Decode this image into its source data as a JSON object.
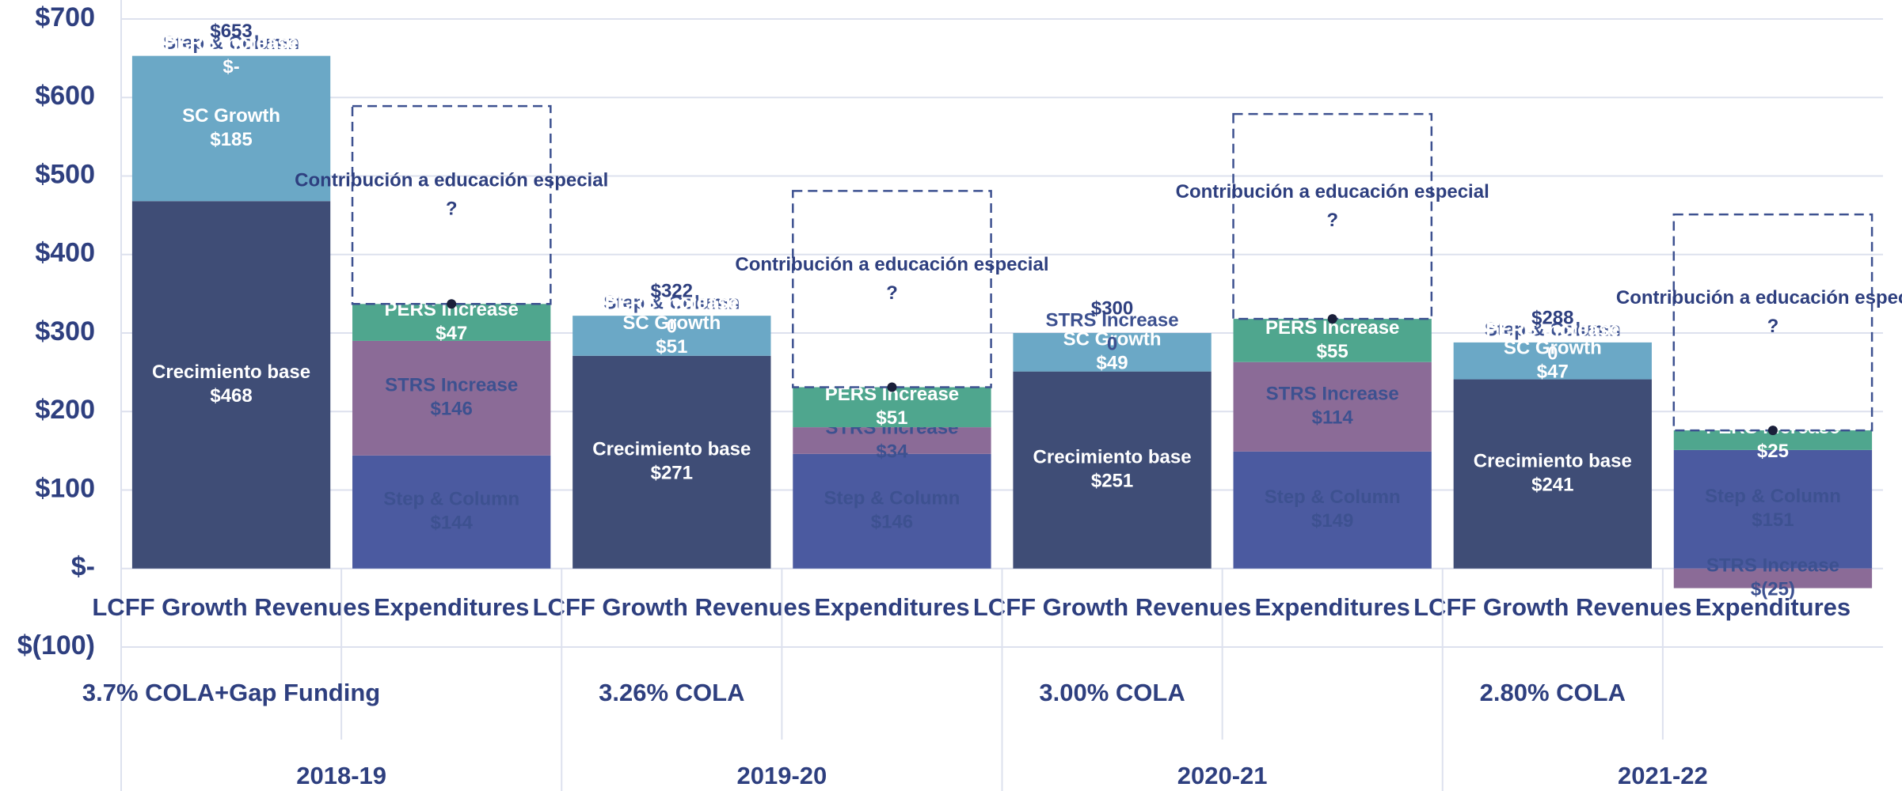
{
  "chart_data": {
    "type": "bar",
    "categories": [
      "LCFF Growth Revenues",
      "Expenditures",
      "LCFF Growth Revenues",
      "Expenditures",
      "LCFF Growth Revenues",
      "Expenditures",
      "LCFF Growth Revenues",
      "Expenditures"
    ],
    "groups": [
      "2018-19",
      "2019-20",
      "2020-21",
      "2021-22"
    ],
    "group_notes": [
      "3.7% COLA+Gap Funding",
      "3.26% COLA",
      "3.00% COLA",
      "2.80% COLA"
    ],
    "series": [
      {
        "name": "Crecimiento base",
        "color": "#3f4d76",
        "text_color": "#ffffff",
        "values": [
          468,
          0,
          271,
          0,
          251,
          0,
          241,
          0
        ],
        "value_labels": [
          "$468",
          "0",
          "$271",
          "0",
          "$251",
          "0",
          "$241",
          "0"
        ]
      },
      {
        "name": "SC Growth",
        "color": "#6ba8c6",
        "text_color": "#ffffff",
        "values": [
          185,
          0,
          51,
          0,
          49,
          0,
          47,
          0
        ],
        "value_labels": [
          "$185",
          "0",
          "$51",
          "0",
          "$49",
          "0",
          "$47",
          "0"
        ]
      },
      {
        "name": "Step & Column",
        "color": "#4b5aa0",
        "text_color": "#3d5190",
        "values": [
          0,
          144,
          0,
          146,
          null,
          149,
          0,
          151
        ],
        "value_labels": [
          "$-",
          "$144",
          "0",
          "$146",
          null,
          "$149",
          "0",
          "$151"
        ]
      },
      {
        "name": "STRS Increase",
        "color": "#8b6b97",
        "text_color": "#3d5190",
        "values": [
          null,
          146,
          null,
          34,
          0,
          114,
          null,
          -25
        ],
        "value_labels": [
          null,
          "$146",
          null,
          "$34",
          "0",
          "$114",
          null,
          "$(25)"
        ]
      },
      {
        "name": "PERS Increase",
        "color": "#4fa68e",
        "text_color": "#ffffff",
        "values": [
          0,
          47,
          0,
          51,
          null,
          55,
          0,
          25
        ],
        "value_labels": [
          "$-",
          "$47",
          "0",
          "$51",
          null,
          "$55",
          "0",
          "$25"
        ]
      },
      {
        "name": "Contribución a educación especial",
        "color": "none",
        "text_color": "#2e3f7f",
        "dashed": true,
        "marker_text": "?",
        "values": [
          null,
          252,
          null,
          250,
          null,
          261,
          null,
          275
        ]
      }
    ],
    "totals": [
      653,
      null,
      322,
      null,
      300,
      null,
      288,
      null
    ],
    "total_labels": [
      "$653",
      null,
      "$322",
      null,
      "$300",
      null,
      "$288",
      null
    ],
    "ylim": [
      -100,
      700
    ],
    "yticks": [
      {
        "value": 700,
        "label": "$700"
      },
      {
        "value": 600,
        "label": "$600"
      },
      {
        "value": 500,
        "label": "$500"
      },
      {
        "value": 400,
        "label": "$400"
      },
      {
        "value": 300,
        "label": "$300"
      },
      {
        "value": 200,
        "label": "$200"
      },
      {
        "value": 100,
        "label": "$100"
      },
      {
        "value": 0,
        "label": "$-"
      },
      {
        "value": -100,
        "label": "$(100)"
      }
    ],
    "grid": true
  }
}
